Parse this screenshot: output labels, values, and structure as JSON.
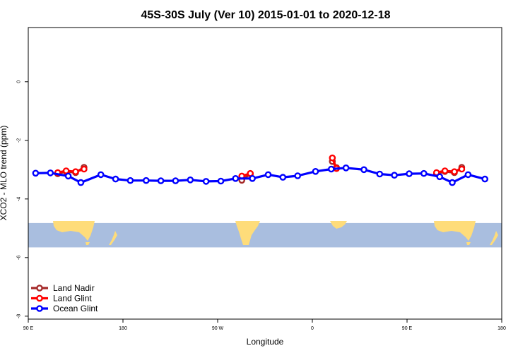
{
  "chart_data": {
    "type": "line",
    "title": "45S-30S July (Ver 10)   2015-01-01 to 2020-12-18",
    "xlabel": "Longitude",
    "ylabel": "XCO2 - MLO trend (ppm)",
    "xlim": [
      90,
      540
    ],
    "ylim": [
      -8.1,
      1.85
    ],
    "x_ticks": [
      {
        "value": 90,
        "label": "90 E"
      },
      {
        "value": 180,
        "label": "180"
      },
      {
        "value": 270,
        "label": "90 W"
      },
      {
        "value": 360,
        "label": "0"
      },
      {
        "value": 450,
        "label": "90 E"
      },
      {
        "value": 540,
        "label": "180"
      }
    ],
    "y_ticks": [
      {
        "value": 0,
        "label": "0"
      },
      {
        "value": -2,
        "label": "-2"
      },
      {
        "value": -4,
        "label": "-4"
      },
      {
        "value": -6,
        "label": "-6"
      },
      {
        "value": -8,
        "label": "-8"
      }
    ],
    "grid": false,
    "legend_position": "bottom-left",
    "map_band": {
      "y_top": -4.82,
      "y_bottom": -5.65,
      "ocean_color": "#a9bedf",
      "land_color": "#fedc7a"
    },
    "series": [
      {
        "name": "Land Nadir",
        "color": "#a52a2a",
        "segments": [
          [
            [
              118,
              -3.14
            ],
            [
              126,
              -3.06
            ],
            [
              135,
              -3.1
            ],
            [
              143,
              -2.92
            ]
          ],
          [
            [
              293,
              -3.36
            ],
            [
              301,
              -3.15
            ]
          ],
          [
            [
              379,
              -2.72
            ],
            [
              383,
              -2.93
            ]
          ],
          [
            [
              478,
              -3.14
            ],
            [
              486,
              -3.06
            ],
            [
              495,
              -3.1
            ],
            [
              502,
              -2.92
            ]
          ]
        ]
      },
      {
        "name": "Land Glint",
        "color": "#ff0000",
        "segments": [
          [
            [
              118,
              -3.1
            ],
            [
              126,
              -3.04
            ],
            [
              135,
              -3.07
            ],
            [
              143,
              -2.98
            ]
          ],
          [
            [
              293,
              -3.22
            ],
            [
              301,
              -3.13
            ]
          ],
          [
            [
              379,
              -2.6
            ],
            [
              383,
              -2.96
            ]
          ],
          [
            [
              478,
              -3.1
            ],
            [
              486,
              -3.04
            ],
            [
              495,
              -3.07
            ],
            [
              502,
              -2.98
            ]
          ]
        ]
      },
      {
        "name": "Ocean Glint",
        "color": "#0000ff",
        "segments": [
          [
            [
              97,
              -3.12
            ],
            [
              111,
              -3.11
            ],
            [
              128,
              -3.22
            ],
            [
              140,
              -3.44
            ],
            [
              159,
              -3.17
            ],
            [
              173,
              -3.32
            ],
            [
              187,
              -3.37
            ],
            [
              202,
              -3.37
            ],
            [
              216,
              -3.38
            ],
            [
              230,
              -3.38
            ],
            [
              244,
              -3.35
            ],
            [
              259,
              -3.4
            ],
            [
              273,
              -3.39
            ],
            [
              287,
              -3.3
            ],
            [
              303,
              -3.3
            ],
            [
              318,
              -3.17
            ],
            [
              332,
              -3.26
            ],
            [
              346,
              -3.21
            ],
            [
              363,
              -3.06
            ],
            [
              378,
              -2.98
            ],
            [
              392,
              -2.94
            ],
            [
              409,
              -3.0
            ],
            [
              424,
              -3.15
            ],
            [
              438,
              -3.19
            ],
            [
              452,
              -3.14
            ],
            [
              466,
              -3.13
            ],
            [
              481,
              -3.24
            ],
            [
              493,
              -3.44
            ],
            [
              508,
              -3.17
            ],
            [
              524,
              -3.32
            ]
          ]
        ]
      }
    ]
  }
}
